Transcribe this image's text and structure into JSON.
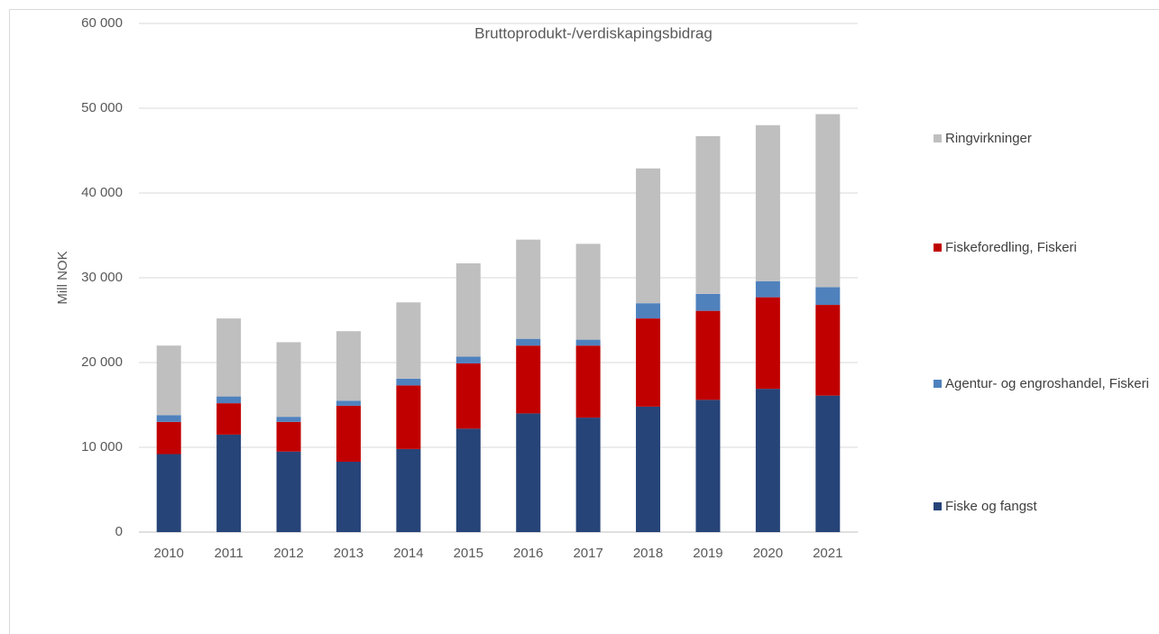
{
  "chart_data": {
    "type": "stacked_bar",
    "title": "Bruttoprodukt-/verdiskapingsbidrag",
    "y_label": "Mill NOK",
    "categories": [
      "2010",
      "2011",
      "2012",
      "2013",
      "2014",
      "2015",
      "2016",
      "2017",
      "2018",
      "2019",
      "2020",
      "2021"
    ],
    "series": [
      {
        "name": "Fiske og fangst",
        "color": "#264478",
        "values": [
          9200,
          11500,
          9500,
          8300,
          9800,
          12200,
          14000,
          13500,
          14800,
          15600,
          16900,
          16100
        ]
      },
      {
        "name": "Fiskeforedling, Fiskeri",
        "color": "#c00000",
        "values": [
          3800,
          3700,
          3500,
          6600,
          7500,
          7700,
          8000,
          8500,
          10400,
          10500,
          10800,
          10700
        ]
      },
      {
        "name": "Agentur- og engroshandel, Fiskeri",
        "color": "#4f81bd",
        "values": [
          800,
          800,
          600,
          600,
          800,
          800,
          800,
          700,
          1800,
          2000,
          1900,
          2100
        ]
      },
      {
        "name": "Ringvirkninger",
        "color": "#bfbfbf",
        "values": [
          8200,
          9200,
          8800,
          8200,
          9000,
          11000,
          11700,
          11300,
          15900,
          18600,
          18400,
          20400
        ]
      }
    ],
    "ylim": [
      0,
      60000
    ],
    "yticks": [
      0,
      {
        "value": 10000,
        "label": "10 000"
      },
      {
        "value": 20000,
        "label": "20 000"
      },
      {
        "value": 30000,
        "label": "30 000"
      },
      {
        "value": 40000,
        "label": "40 000"
      },
      {
        "value": 50000,
        "label": "50 000"
      },
      {
        "value": 60000,
        "label": "60 000"
      }
    ],
    "grid": true,
    "legend": "right"
  }
}
